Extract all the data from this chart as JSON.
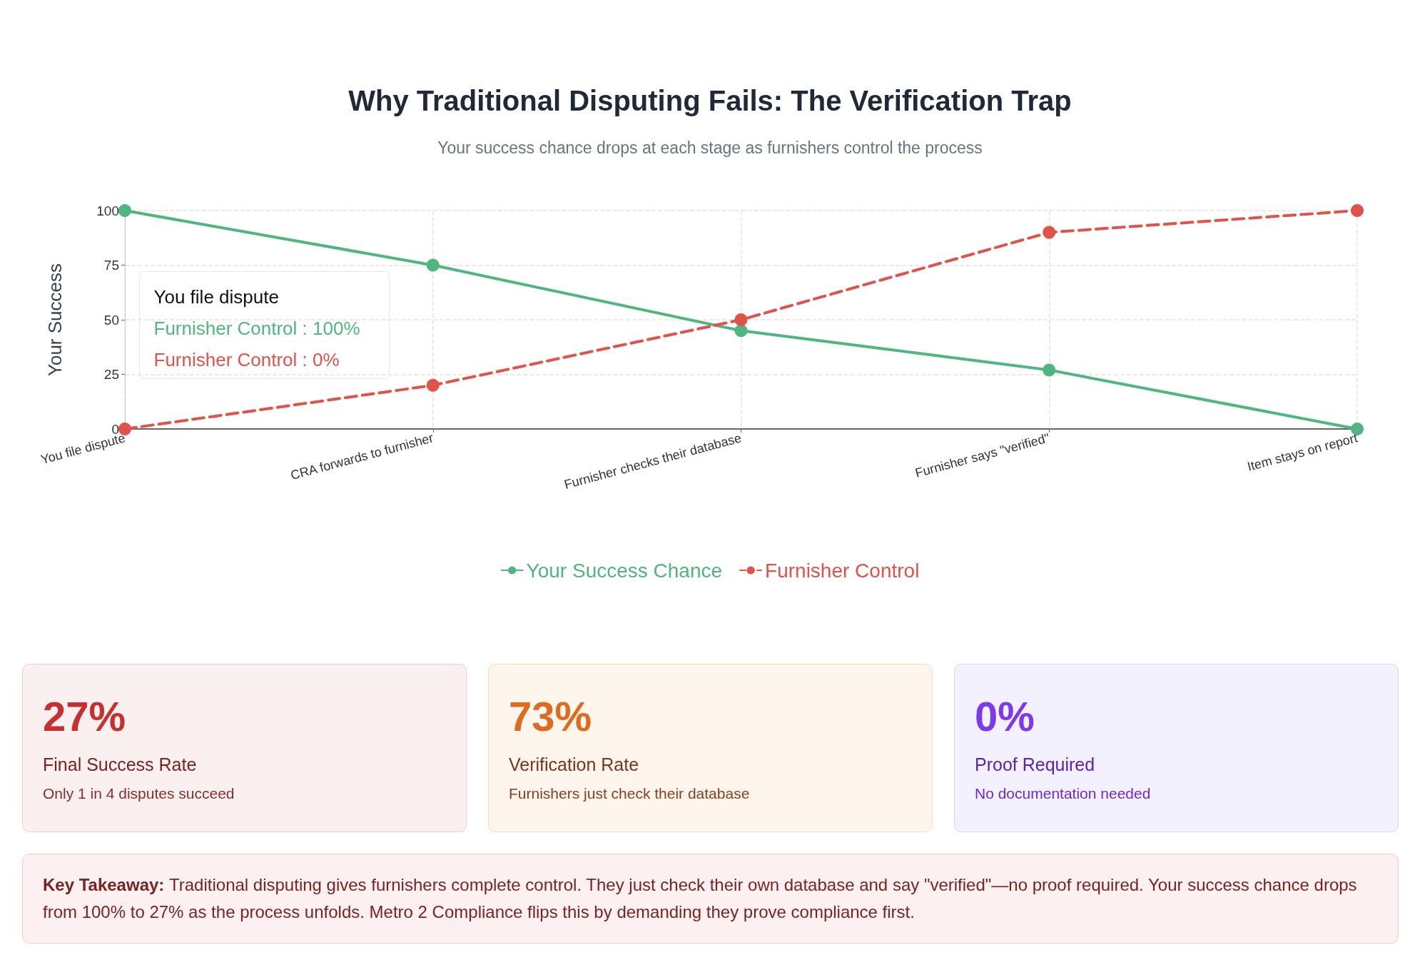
{
  "chart_data": [
    {
      "type": "line",
      "title": "Why Traditional Disputing Fails: The Verification Trap",
      "subtitle": "Your success chance drops at each stage as furnishers control the process",
      "ylabel": "Your Success",
      "categories": [
        "You file dispute",
        "CRA forwards to furnisher",
        "Furnisher checks their database",
        "Furnisher says \"verified\"",
        "Item stays on report"
      ],
      "series": [
        {
          "name": "Your Success Chance",
          "color": "#4fb67f",
          "line_style": "solid",
          "values": [
            100,
            75,
            45,
            27,
            0
          ]
        },
        {
          "name": "Furnisher Control",
          "color": "#e0524a",
          "line_style": "dashed",
          "values": [
            0,
            20,
            50,
            90,
            100
          ]
        }
      ],
      "ylim": [
        0,
        100
      ],
      "yticks": [
        0,
        25,
        50,
        75,
        100
      ],
      "grid": true,
      "legend": "bottom",
      "marker": "circle",
      "annotations": [
        "You file dispute",
        "Furnisher Control : 100%",
        "Furnisher Control : 0%"
      ]
    },
    {
      "type": "other",
      "annotations": [
        "27%",
        "Final Success Rate",
        "Only 1 in 4 disputes succeed",
        "73%",
        "Verification Rate",
        "Furnishers just check their database",
        "0%",
        "Proof Required",
        "No documentation needed",
        "Key Takeaway:",
        "Traditional disputing gives furnishers complete control. They just check their own database and say \"verified\"—no proof required. Your success chance drops from 100% to 27% as the process unfolds. Metro 2 Compliance flips this by demanding they prove compliance first."
      ]
    }
  ]
}
